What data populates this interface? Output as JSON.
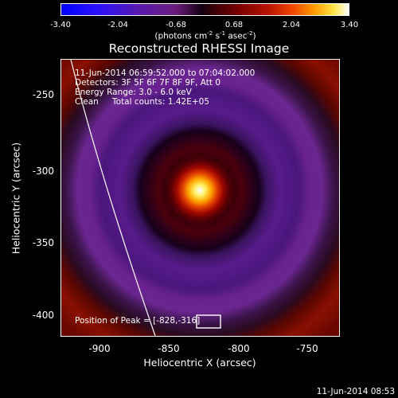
{
  "colorbar": {
    "tick_labels": [
      "-3.40",
      "-2.04",
      "-0.68",
      "0.68",
      "2.04",
      "3.40"
    ],
    "units_main": "(photons cm",
    "units_exp1": "-2",
    "units_s": " s",
    "units_exp2": "-1",
    "units_asec": " asec",
    "units_exp3": "-2",
    "units_close": ")"
  },
  "title": "Reconstructed RHESSI Image",
  "info": {
    "time_range": "11-Jun-2014 06:59:52.000 to 07:04:02.000",
    "detectors": "Detectors: 3F 5F 6F 7F 8F 9F, Att 0",
    "energy": "Energy Range: 3.0 - 6.0 keV",
    "method": "Clean",
    "counts": "Total counts: 1.42E+05",
    "peak": "Position of Peak = [-828,-316]"
  },
  "axes": {
    "xlabel": "Heliocentric X (arcsec)",
    "ylabel": "Heliocentric Y (arcsec)",
    "xticks": [
      "-900",
      "-850",
      "-800",
      "-750"
    ],
    "yticks": [
      "-250",
      "-300",
      "-350",
      "-400"
    ]
  },
  "timestamp": "11-Jun-2014 08:53"
}
